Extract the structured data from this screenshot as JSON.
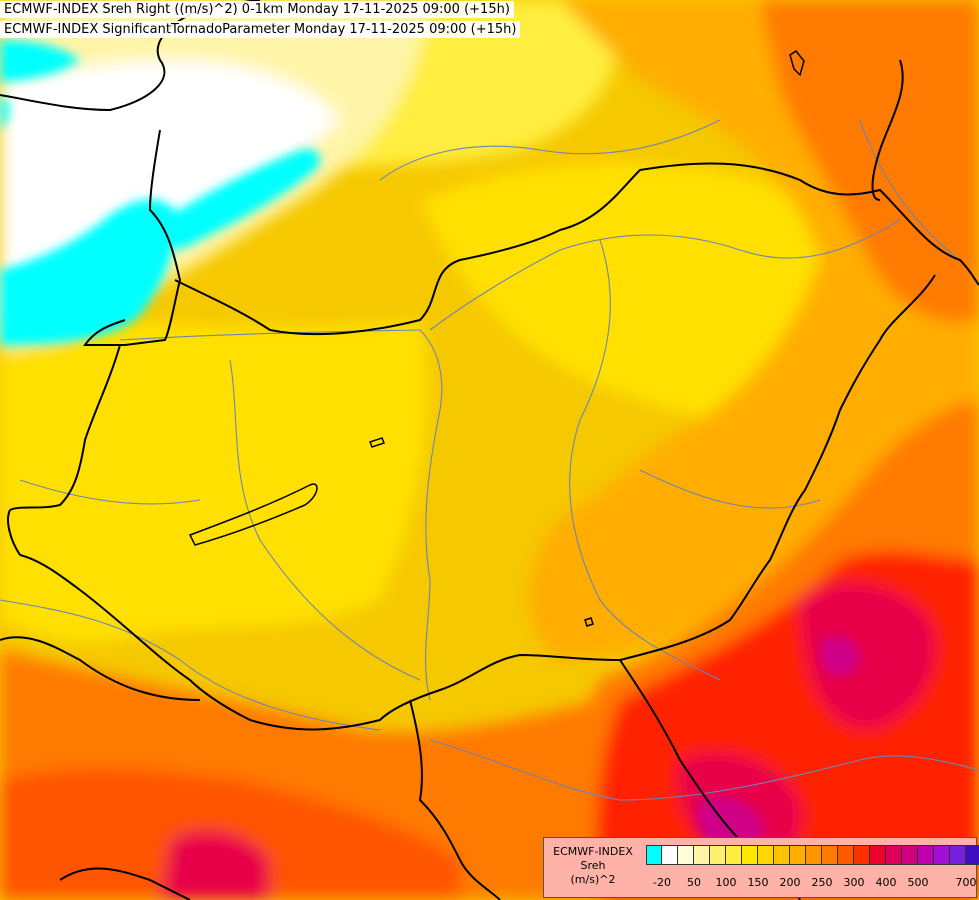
{
  "header": {
    "line1": "ECMWF-INDEX Sreh Right ((m/s)^2) 0-1km Monday 17-11-2025 09:00 (+15h)",
    "line2": "ECMWF-INDEX SignificantTornadoParameter Monday 17-11-2025 09:00 (+15h)"
  },
  "legend": {
    "title_lines": [
      "ECMWF-INDEX",
      "Sreh",
      "(m/s)^2"
    ],
    "colors": [
      "#00ffff",
      "#ffffff",
      "#fffcd8",
      "#fff4a8",
      "#fff070",
      "#ffee40",
      "#ffe800",
      "#ffd700",
      "#ffc200",
      "#ffad00",
      "#ff9400",
      "#ff7a00",
      "#ff5a00",
      "#ff3000",
      "#f0002c",
      "#e0005c",
      "#d00080",
      "#c000b0",
      "#a010d8",
      "#7820e0",
      "#4010c0",
      "#101090"
    ],
    "tick_labels": [
      "-20",
      "50",
      "100",
      "150",
      "200",
      "250",
      "300",
      "400",
      "500",
      "700"
    ]
  },
  "map": {
    "colors": {
      "cyan": "#00ffff",
      "white": "#ffffff",
      "pale_yellow": "#fff4a8",
      "light_yellow": "#ffee40",
      "yellow": "#ffe000",
      "gold": "#f5c800",
      "amber": "#ffad00",
      "orange": "#ff7a00",
      "deep_orange": "#ff5500",
      "red": "#ff2000",
      "crimson": "#e8004a",
      "magenta": "#d00088",
      "border": "#000000",
      "river": "#6e84b8"
    }
  }
}
